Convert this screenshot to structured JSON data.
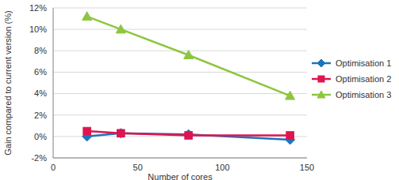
{
  "chart_data": {
    "type": "line",
    "x_label": "Number of cores",
    "y_label": "Gain compared to current version (%)",
    "x": [
      20,
      40,
      80,
      140
    ],
    "xlim": [
      0,
      150
    ],
    "xticks": [
      0,
      50,
      100,
      150
    ],
    "ylim": [
      -2,
      12
    ],
    "yticks": [
      {
        "value": -2,
        "label": "-2%"
      },
      {
        "value": 0,
        "label": "0%"
      },
      {
        "value": 2,
        "label": "2%"
      },
      {
        "value": 4,
        "label": "4%"
      },
      {
        "value": 6,
        "label": "6%"
      },
      {
        "value": 8,
        "label": "8%"
      },
      {
        "value": 10,
        "label": "10%"
      },
      {
        "value": 12,
        "label": "12%"
      }
    ],
    "grid": true,
    "legend": "right",
    "series": [
      {
        "name": "Optimisation 1",
        "color": "#1c75bc",
        "marker": "diamond",
        "values": [
          0.0,
          0.3,
          0.2,
          -0.3
        ]
      },
      {
        "name": "Optimisation 2",
        "color": "#e0144f",
        "marker": "square",
        "values": [
          0.5,
          0.3,
          0.1,
          0.1
        ]
      },
      {
        "name": "Optimisation 3",
        "color": "#8dc63f",
        "marker": "triangle",
        "values": [
          11.2,
          10.0,
          7.6,
          3.8
        ]
      }
    ]
  }
}
